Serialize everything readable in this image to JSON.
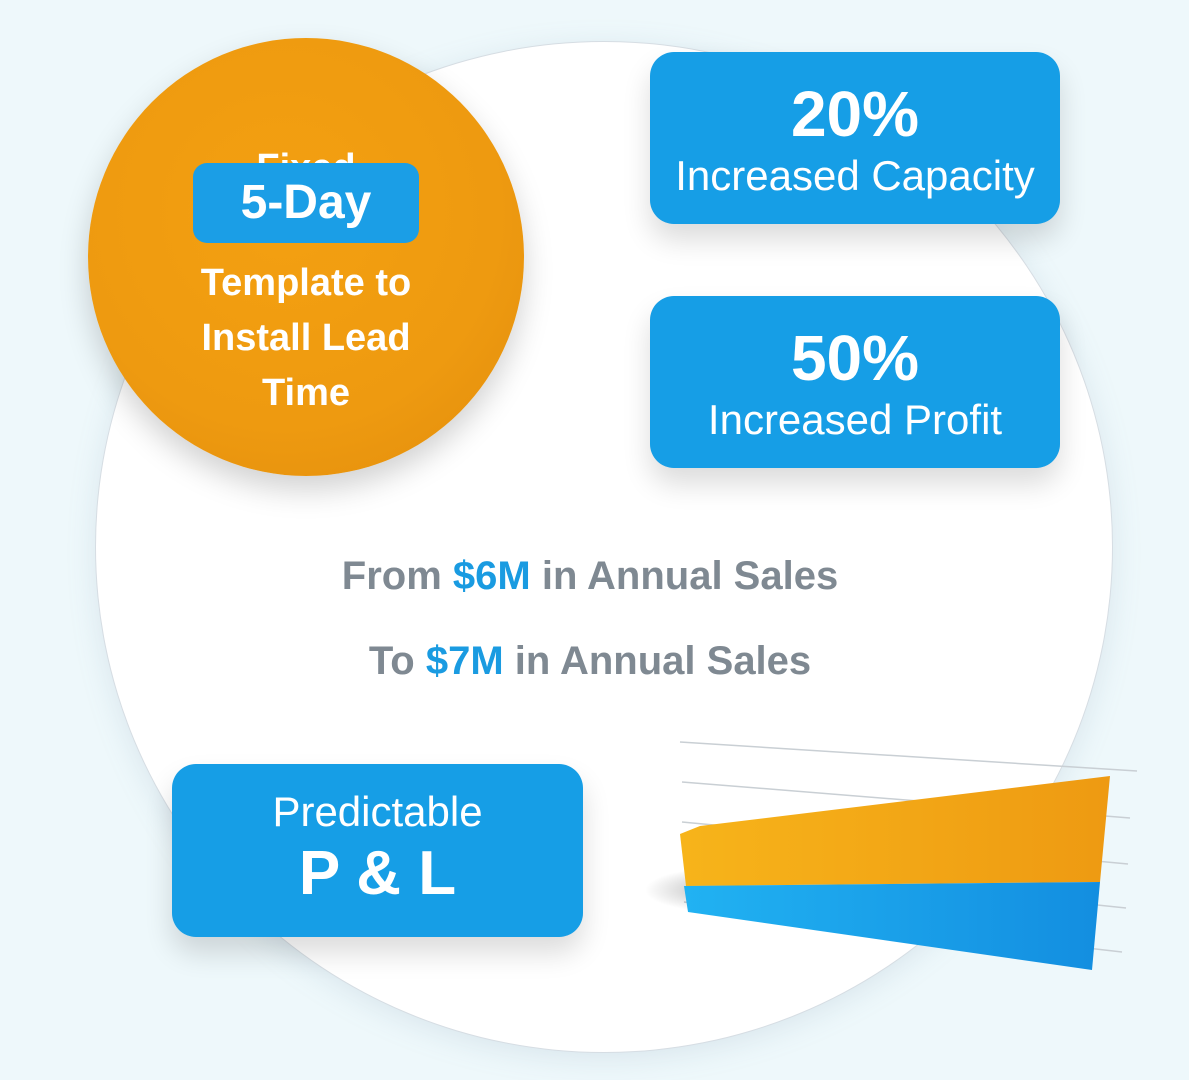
{
  "circle": {
    "line1": "Fixed",
    "badge": "5-Day",
    "line2": "Template to",
    "line3": "Install Lead",
    "line4": "Time"
  },
  "stats": [
    {
      "value": "20%",
      "label": "Increased Capacity"
    },
    {
      "value": "50%",
      "label": "Increased Profit"
    }
  ],
  "sales": {
    "from_prefix": "From",
    "from_value": "$6M",
    "from_suffix": "in Annual Sales",
    "to_prefix": "To",
    "to_value": "$7M",
    "to_suffix": "in Annual Sales"
  },
  "pl_box": {
    "top": "Predictable",
    "main": "P & L"
  },
  "colors": {
    "orange": "#f09c10",
    "blue": "#169ee6",
    "grey_text": "#7f8992",
    "accent_blue": "#1a9be1"
  }
}
